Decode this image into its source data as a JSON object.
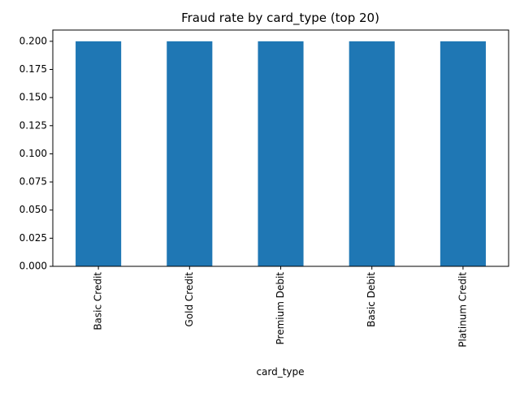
{
  "chart_data": {
    "type": "bar",
    "title": "Fraud rate by card_type (top 20)",
    "xlabel": "card_type",
    "ylabel": "",
    "categories": [
      "Basic Credit",
      "Gold Credit",
      "Premium Debit",
      "Basic Debit",
      "Platinum Credit"
    ],
    "values": [
      0.2,
      0.2,
      0.2,
      0.2,
      0.2
    ],
    "ylim": [
      0,
      0.21
    ],
    "yticks": [
      0.0,
      0.025,
      0.05,
      0.075,
      0.1,
      0.125,
      0.15,
      0.175,
      0.2
    ],
    "ytick_labels": [
      "0.000",
      "0.025",
      "0.050",
      "0.075",
      "0.100",
      "0.125",
      "0.150",
      "0.175",
      "0.200"
    ],
    "grid": false,
    "legend": "none",
    "bar_color": "#1f77b4"
  }
}
